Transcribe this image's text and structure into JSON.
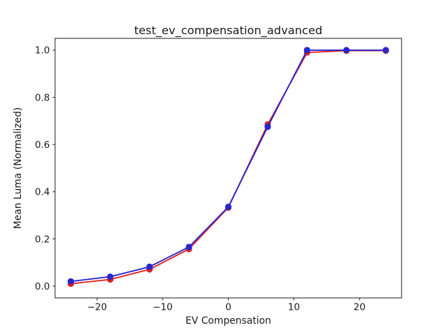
{
  "chart_data": {
    "type": "line",
    "title": "test_ev_compensation_advanced",
    "xlabel": "EV Compensation",
    "ylabel": "Mean Luma (Normalized)",
    "x": [
      -24,
      -18,
      -12,
      -6,
      0,
      6,
      12,
      18,
      24
    ],
    "series": [
      {
        "name": "red",
        "color": "#e02222",
        "marker": "circle",
        "line_width": 1.9,
        "marker_size": 9.2,
        "values": [
          0.01,
          0.028,
          0.071,
          0.157,
          0.333,
          0.685,
          0.99,
          0.998,
          0.998
        ]
      },
      {
        "name": "blue",
        "color": "#2a26cf",
        "marker": "circle",
        "line_width": 1.9,
        "marker_size": 9.2,
        "values": [
          0.02,
          0.04,
          0.082,
          0.166,
          0.336,
          0.675,
          1.0,
          1.0,
          1.0
        ]
      }
    ],
    "xlim": [
      -26.4,
      26.4
    ],
    "ylim": [
      -0.05,
      1.05
    ],
    "xticks": [
      {
        "value": -20,
        "label": "−20"
      },
      {
        "value": -10,
        "label": "−10"
      },
      {
        "value": 0,
        "label": "0"
      },
      {
        "value": 10,
        "label": "10"
      },
      {
        "value": 20,
        "label": "20"
      }
    ],
    "yticks": [
      {
        "value": 0.0,
        "label": "0.0"
      },
      {
        "value": 0.2,
        "label": "0.2"
      },
      {
        "value": 0.4,
        "label": "0.4"
      },
      {
        "value": 0.6,
        "label": "0.6"
      },
      {
        "value": 0.8,
        "label": "0.8"
      },
      {
        "value": 1.0,
        "label": "1.0"
      }
    ],
    "grid": false,
    "legend": "none",
    "colors": {
      "background": "#ffffff",
      "axis": "#1a1a1a"
    }
  }
}
